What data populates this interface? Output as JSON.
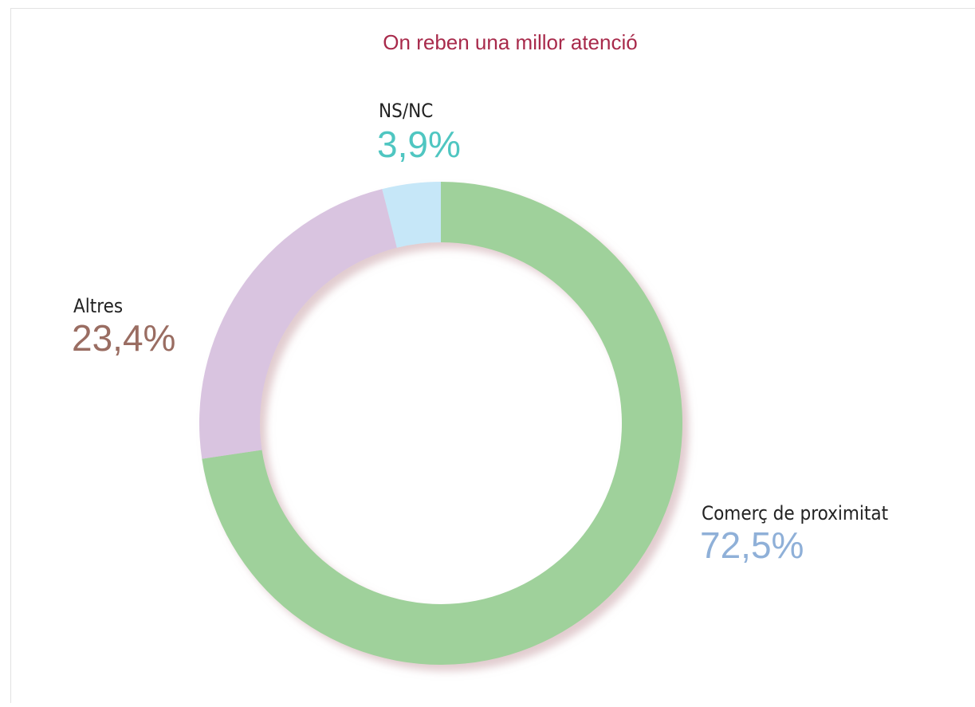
{
  "chart_data": {
    "type": "donut",
    "title": "On reben una millor atenció",
    "categories": [
      "Comerç de proximitat",
      "Altres",
      "NS/NC"
    ],
    "values": [
      72.5,
      23.4,
      3.9
    ],
    "value_labels": [
      "72,5%",
      "23,4%",
      "3,9%"
    ],
    "colors": [
      "#9fd19b",
      "#d9c4e0",
      "#c6e7f8"
    ],
    "label_colors": [
      "#8fb0d8",
      "#9a6d62",
      "#4fc6c1"
    ]
  }
}
